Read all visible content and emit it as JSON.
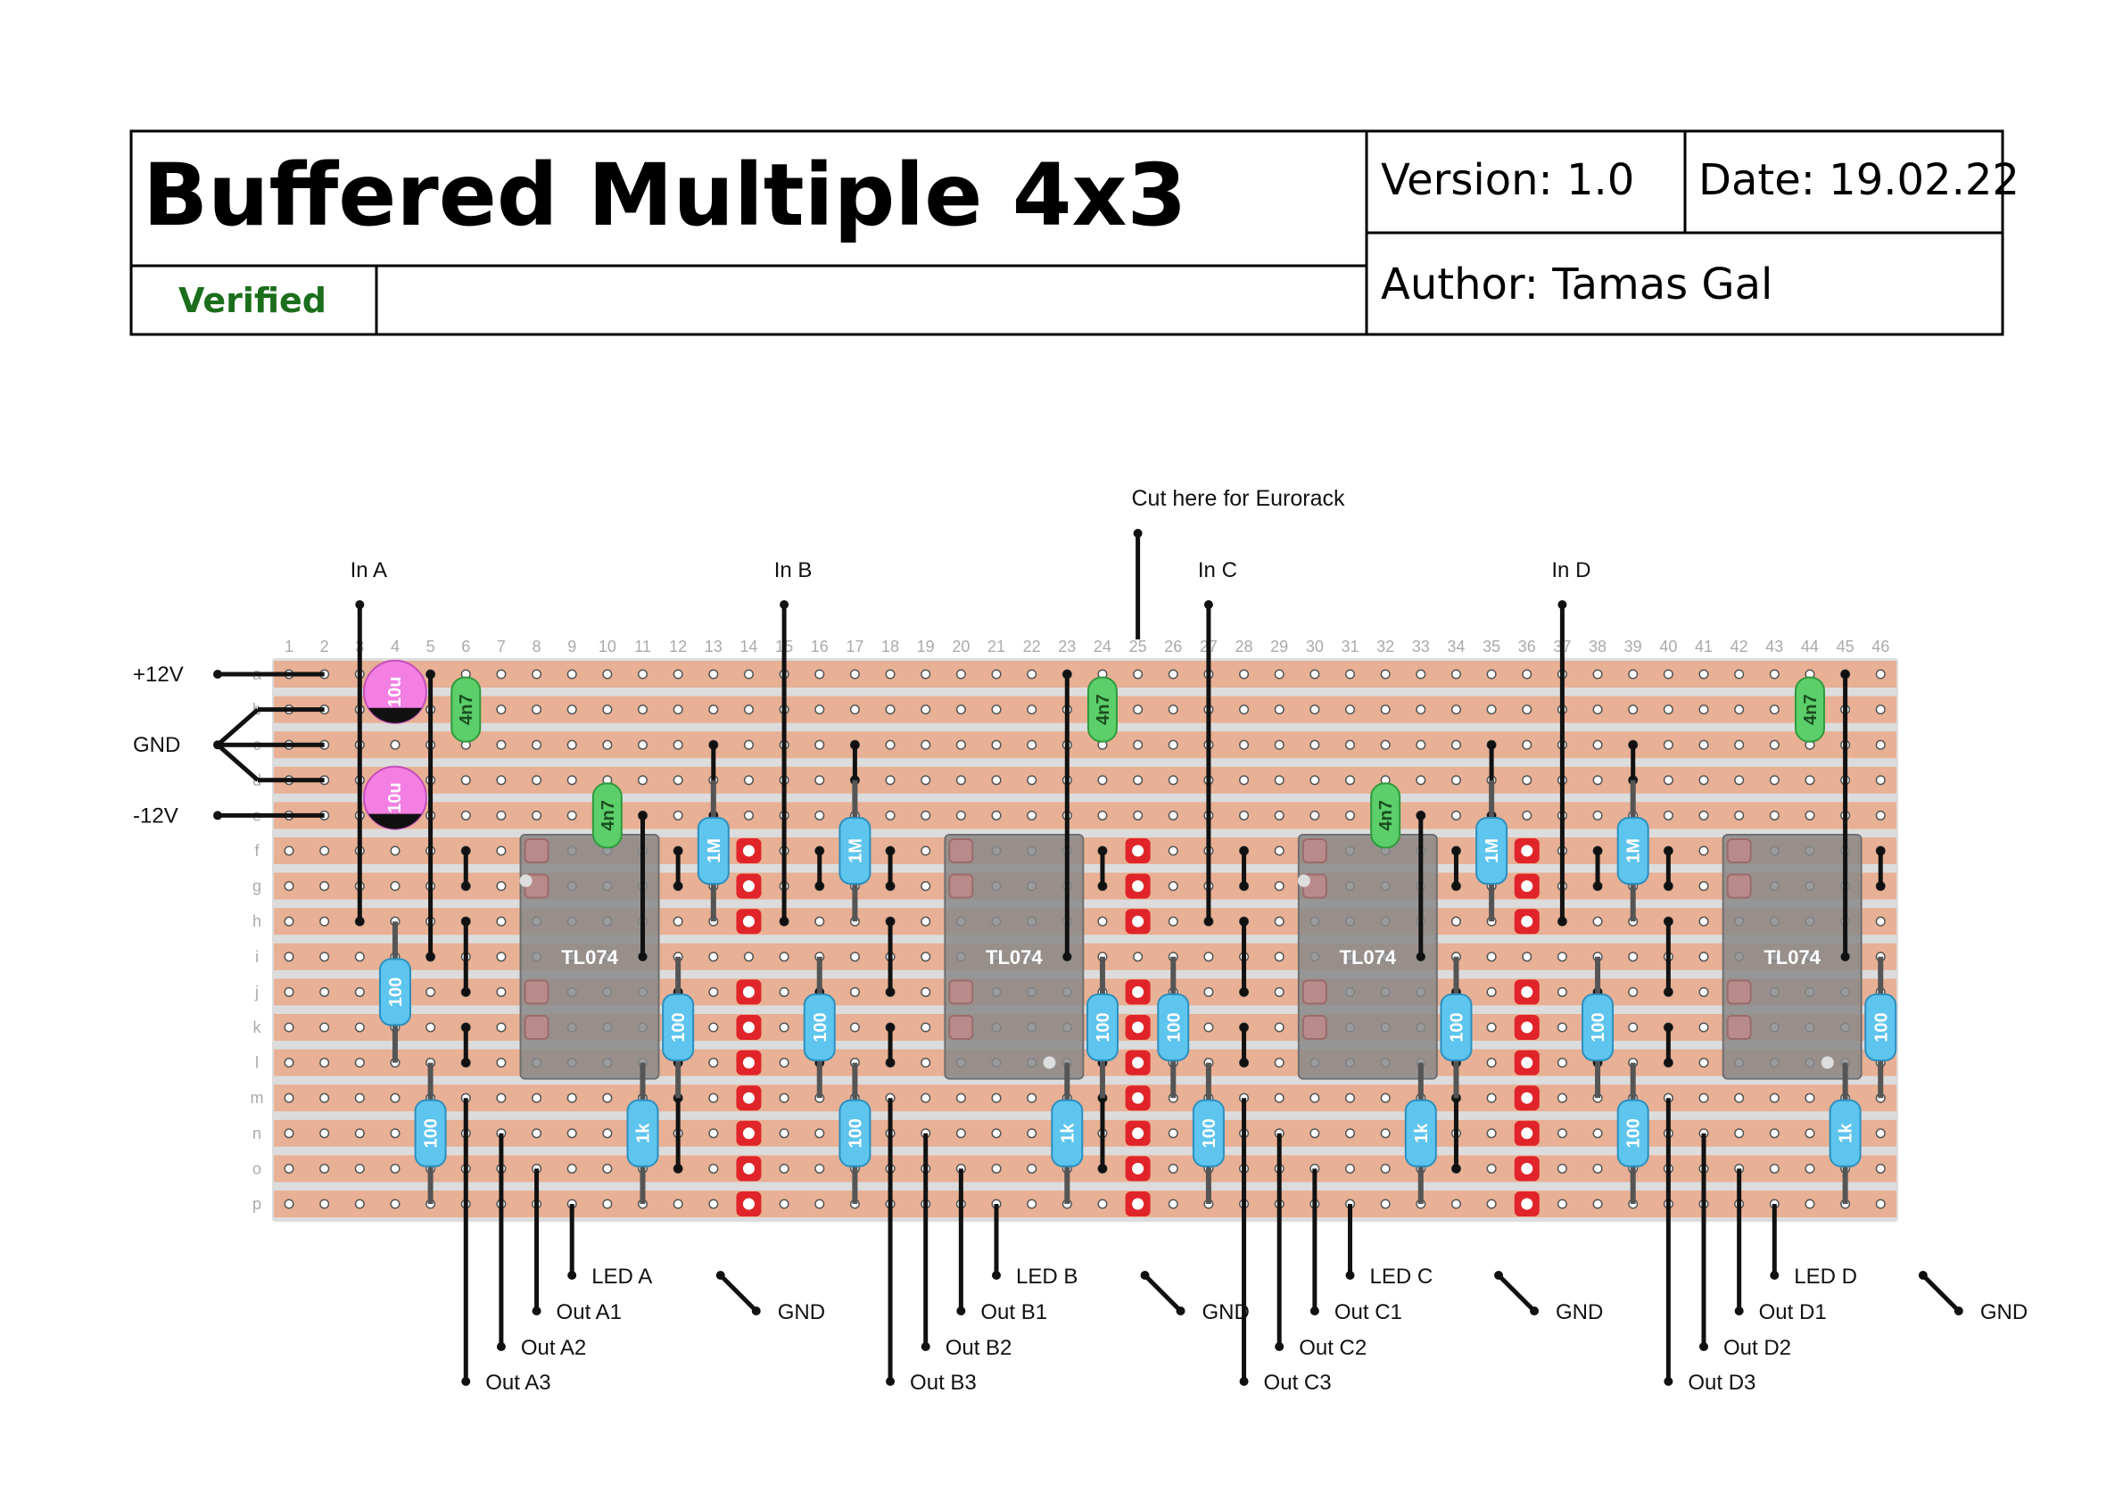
{
  "title": "Buffered Multiple 4x3",
  "status": "Verified",
  "version": "Version: 1.0",
  "date": "Date: 19.02.22",
  "author": "Author: Tamas Gal",
  "cut_label": "Cut here for Eurorack",
  "columns": [
    "1",
    "2",
    "3",
    "4",
    "5",
    "6",
    "7",
    "8",
    "9",
    "10",
    "11",
    "12",
    "13",
    "14",
    "15",
    "16",
    "17",
    "18",
    "19",
    "20",
    "21",
    "22",
    "23",
    "24",
    "25",
    "26",
    "27",
    "28",
    "29",
    "30",
    "31",
    "32",
    "33",
    "34",
    "35",
    "36",
    "37",
    "38",
    "39",
    "40",
    "41",
    "42",
    "43",
    "44",
    "45",
    "46"
  ],
  "rows": [
    "a",
    "b",
    "c",
    "d",
    "e",
    "f",
    "g",
    "h",
    "i",
    "j",
    "k",
    "l",
    "m",
    "n",
    "o",
    "p"
  ],
  "power_labels": [
    "+12V",
    "GND",
    "-12V"
  ],
  "input_labels": [
    "In A",
    "In B",
    "In C",
    "In D"
  ],
  "ic_label": "TL074",
  "component_labels": {
    "electrolytic_cap": "10u",
    "film_cap": "4n7",
    "resistor_1m": "1M",
    "resistor_100": "100",
    "resistor_1k": "1k"
  },
  "output_groups": [
    {
      "led": "LED A",
      "gnd": "GND",
      "outs": [
        "Out A1",
        "Out A2",
        "Out A3"
      ]
    },
    {
      "led": "LED B",
      "gnd": "GND",
      "outs": [
        "Out B1",
        "Out B2",
        "Out B3"
      ]
    },
    {
      "led": "LED C",
      "gnd": "GND",
      "outs": [
        "Out C1",
        "Out C2",
        "Out C3"
      ]
    },
    {
      "led": "LED D",
      "gnd": "GND",
      "outs": [
        "Out D1",
        "Out D2",
        "Out D3"
      ]
    }
  ],
  "colors": {
    "strip": "#e8b094",
    "hole": "#ffffff",
    "wire": "#111111",
    "ic": "#8a8a8a",
    "resistor": "#5ec5ee",
    "film_cap": "#5cce6a",
    "electrolytic_cap": "#f37fe3",
    "track_cut": "#e0242a",
    "verified": "#1b6e1b"
  }
}
